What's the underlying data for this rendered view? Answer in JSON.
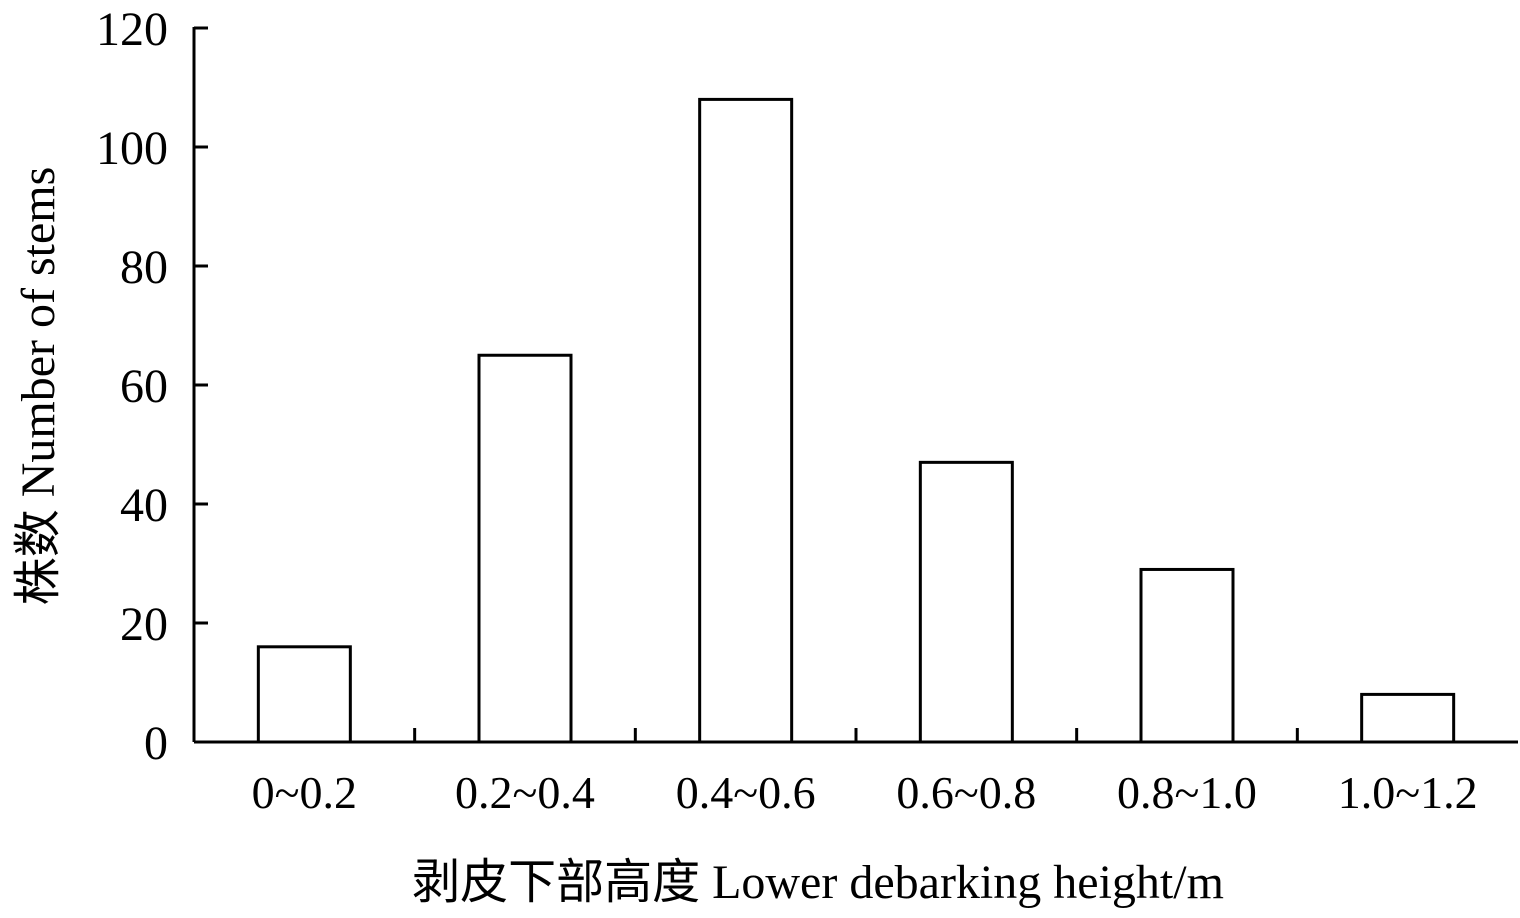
{
  "chart_data": {
    "type": "bar",
    "categories": [
      "0~0.2",
      "0.2~0.4",
      "0.4~0.6",
      "0.6~0.8",
      "0.8~1.0",
      "1.0~1.2"
    ],
    "values": [
      16,
      65,
      108,
      47,
      29,
      8
    ],
    "xlabel": "剥皮下部高度 Lower debarking height/m",
    "ylabel": "株数 Number of stems",
    "ylim": [
      0,
      120
    ],
    "yticks": [
      0,
      20,
      40,
      60,
      80,
      100,
      120
    ],
    "ytick_labels": [
      "0",
      "20",
      "40",
      "60",
      "80",
      "100",
      "120"
    ],
    "grid": false,
    "bar_fill": "#ffffff",
    "bar_stroke": "#000000"
  }
}
